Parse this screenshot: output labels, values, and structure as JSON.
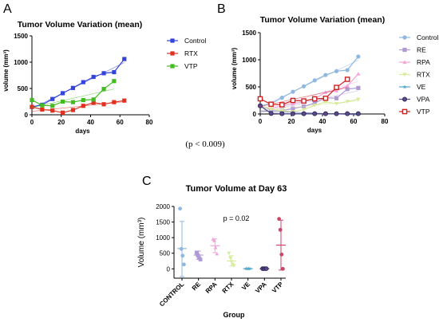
{
  "figure_note": "(p < 0.009)",
  "chart_data": [
    {
      "panel": "A",
      "type": "line",
      "title": "Tumor Volume Variation (mean)",
      "xlabel": "days",
      "ylabel": "volume (mm³)",
      "xlim": [
        0,
        80
      ],
      "ylim": [
        0,
        1500
      ],
      "xticks": [
        0,
        20,
        40,
        60,
        80
      ],
      "yticks": [
        0,
        500,
        1000,
        1500
      ],
      "grid": false,
      "legend_position": "right",
      "series": [
        {
          "name": "Control",
          "color": "#3344dd",
          "marker": "square",
          "x": [
            0,
            7,
            14,
            21,
            28,
            35,
            42,
            49,
            56,
            63
          ],
          "y": [
            150,
            190,
            300,
            410,
            510,
            620,
            720,
            790,
            810,
            1060
          ]
        },
        {
          "name": "RTX",
          "color": "#e03020",
          "marker": "square",
          "x": [
            0,
            7,
            14,
            21,
            28,
            35,
            42,
            49,
            56,
            63
          ],
          "y": [
            150,
            100,
            80,
            40,
            90,
            170,
            230,
            200,
            240,
            270
          ]
        },
        {
          "name": "VTP",
          "color": "#44bb22",
          "marker": "square",
          "x": [
            0,
            7,
            14,
            21,
            28,
            35,
            42,
            49,
            56
          ],
          "y": [
            280,
            180,
            170,
            250,
            240,
            280,
            290,
            490,
            640
          ]
        }
      ]
    },
    {
      "panel": "B",
      "type": "line",
      "title": "Tumor Volume Variation (mean)",
      "xlabel": "days",
      "ylabel": "volume (mm³)",
      "xlim": [
        0,
        80
      ],
      "ylim": [
        0,
        1500
      ],
      "xticks": [
        0,
        20,
        40,
        60,
        80
      ],
      "yticks": [
        0,
        500,
        1000,
        1500
      ],
      "grid": false,
      "legend_position": "right",
      "series": [
        {
          "name": "Control",
          "color": "#8fb8e0",
          "marker": "circle",
          "x": [
            0,
            7,
            14,
            21,
            28,
            35,
            42,
            49,
            56,
            63
          ],
          "y": [
            150,
            190,
            300,
            410,
            510,
            620,
            720,
            790,
            810,
            1060
          ]
        },
        {
          "name": "RE",
          "color": "#b09ad6",
          "marker": "square",
          "x": [
            0,
            7,
            14,
            21,
            28,
            35,
            42,
            49,
            56,
            63
          ],
          "y": [
            150,
            80,
            60,
            100,
            140,
            200,
            300,
            290,
            460,
            480
          ]
        },
        {
          "name": "RPA",
          "color": "#f2a6d9",
          "marker": "triangle",
          "x": [
            0,
            7,
            14,
            21,
            28,
            35,
            42,
            49,
            56,
            63
          ],
          "y": [
            150,
            100,
            150,
            190,
            230,
            280,
            400,
            430,
            520,
            740
          ]
        },
        {
          "name": "RTX",
          "color": "#d7ec9b",
          "marker": "triangle-down",
          "x": [
            0,
            7,
            14,
            21,
            28,
            35,
            42,
            49,
            56,
            63
          ],
          "y": [
            150,
            90,
            60,
            40,
            80,
            160,
            220,
            190,
            230,
            270
          ]
        },
        {
          "name": "VE",
          "color": "#55aacc",
          "marker": "star",
          "x": [
            0,
            7,
            14,
            21,
            28,
            35,
            42,
            49,
            56,
            63
          ],
          "y": [
            150,
            10,
            5,
            5,
            5,
            5,
            5,
            5,
            5,
            5
          ]
        },
        {
          "name": "VPA",
          "color": "#5a4a8a",
          "marker": "circle-dark",
          "x": [
            0,
            7,
            14,
            21,
            28,
            35,
            42,
            49,
            56,
            63
          ],
          "y": [
            150,
            10,
            5,
            5,
            5,
            5,
            5,
            5,
            5,
            5
          ]
        },
        {
          "name": "VTP",
          "color": "#cc2222",
          "marker": "square-open",
          "x": [
            0,
            7,
            14,
            21,
            28,
            35,
            42,
            49,
            56
          ],
          "y": [
            280,
            180,
            170,
            250,
            240,
            280,
            290,
            490,
            640
          ]
        }
      ]
    },
    {
      "panel": "C",
      "type": "scatter",
      "title": "Tumor Volume at Day 63",
      "xlabel": "Group",
      "ylabel": "Volume (mm³)",
      "ylim": [
        -300,
        2000
      ],
      "yticks": [
        0,
        500,
        1000,
        1500,
        2000
      ],
      "annotation": "p = 0.02",
      "grid": false,
      "categories": [
        "CONTROL",
        "RE",
        "RPA",
        "RTX",
        "VE",
        "VPA",
        "VTP"
      ],
      "groups": [
        {
          "name": "CONTROL",
          "color": "#8fb8e0",
          "marker": "circle",
          "points": [
            1930,
            640,
            420,
            140
          ],
          "mean": 650,
          "sd_low": -250,
          "sd_high": 1520
        },
        {
          "name": "RE",
          "color": "#b09ad6",
          "marker": "square",
          "points": [
            520,
            430,
            350,
            300
          ],
          "mean": 440,
          "sd_low": 310,
          "sd_high": 570
        },
        {
          "name": "RPA",
          "color": "#f2a6d9",
          "marker": "triangle",
          "points": [
            950,
            900,
            680,
            480
          ],
          "mean": 740,
          "sd_low": 520,
          "sd_high": 960
        },
        {
          "name": "RTX",
          "color": "#d7ec9b",
          "marker": "triangle-down",
          "points": [
            500,
            350,
            230,
            150,
            100
          ],
          "mean": 250,
          "sd_low": 90,
          "sd_high": 420
        },
        {
          "name": "VE",
          "color": "#55aacc",
          "marker": "star",
          "points": [
            5,
            5,
            5,
            5
          ],
          "mean": 5,
          "sd_low": 0,
          "sd_high": 10
        },
        {
          "name": "VPA",
          "color": "#5a4a8a",
          "marker": "circle-dark",
          "points": [
            5,
            5,
            5,
            5
          ],
          "mean": 5,
          "sd_low": 0,
          "sd_high": 10
        },
        {
          "name": "VTP",
          "color": "#cc4466",
          "marker": "circle",
          "points": [
            1600,
            1250,
            460,
            0
          ],
          "mean": 760,
          "sd_low": -40,
          "sd_high": 1560
        }
      ]
    }
  ]
}
